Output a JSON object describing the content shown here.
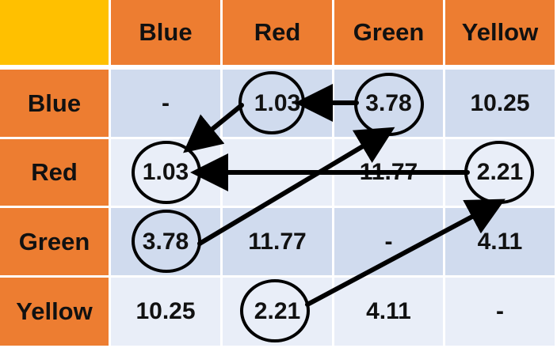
{
  "headers": [
    "",
    "Blue",
    "Red",
    "Green",
    "Yellow"
  ],
  "rows": [
    {
      "label": "Blue",
      "cells": [
        "-",
        "1.03",
        "3.78",
        "10.25"
      ]
    },
    {
      "label": "Red",
      "cells": [
        "1.03",
        "-",
        "11.77",
        "2.21"
      ]
    },
    {
      "label": "Green",
      "cells": [
        "3.78",
        "11.77",
        "-",
        "4.11"
      ]
    },
    {
      "label": "Yellow",
      "cells": [
        "10.25",
        "2.21",
        "4.11",
        "-"
      ]
    }
  ],
  "colors": {
    "corner": "#ffc000",
    "header": "#ed7d31",
    "row_dark": "#d0dbee",
    "row_light": "#e9eef8",
    "annotation": "#000000"
  }
}
